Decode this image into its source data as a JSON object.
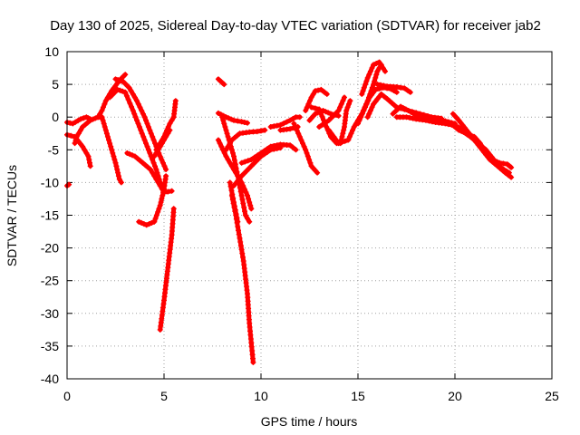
{
  "chart_data": {
    "type": "scatter",
    "title": "Day 130 of 2025, Sidereal Day-to-day VTEC variation (SDTVAR) for receiver jab2",
    "xlabel": "GPS time / hours",
    "ylabel": "SDTVAR / TECUs",
    "xlim": [
      0,
      25
    ],
    "ylim": [
      -40,
      10
    ],
    "xticks": [
      0,
      5,
      10,
      15,
      20,
      25
    ],
    "yticks": [
      10,
      5,
      0,
      -5,
      -10,
      -15,
      -20,
      -25,
      -30,
      -35,
      -40
    ],
    "grid": true,
    "marker": "+",
    "color": "#ff0000",
    "series": [
      {
        "name": "s1",
        "points": [
          [
            0,
            -10.5
          ],
          [
            0.1,
            -10.3
          ]
        ]
      },
      {
        "name": "s2",
        "points": [
          [
            0,
            -0.8
          ],
          [
            0.3,
            -1.0
          ],
          [
            0.7,
            -0.3
          ],
          [
            1.0,
            0.0
          ],
          [
            1.2,
            -0.3
          ]
        ]
      },
      {
        "name": "s3",
        "points": [
          [
            0,
            -2.7
          ],
          [
            0.4,
            -3.0
          ],
          [
            0.8,
            -4.5
          ],
          [
            1.1,
            -6.0
          ],
          [
            1.2,
            -7.5
          ]
        ]
      },
      {
        "name": "s4",
        "points": [
          [
            0.4,
            -4.0
          ],
          [
            0.5,
            -3.0
          ],
          [
            0.8,
            -1.5
          ],
          [
            1.2,
            -0.5
          ],
          [
            1.6,
            0.0
          ],
          [
            1.8,
            -0.1
          ]
        ]
      },
      {
        "name": "s5",
        "points": [
          [
            1.6,
            0.0
          ],
          [
            1.8,
            1.0
          ],
          [
            2.0,
            2.5
          ],
          [
            2.3,
            4.0
          ],
          [
            2.7,
            5.6
          ],
          [
            3.0,
            6.5
          ]
        ]
      },
      {
        "name": "s6",
        "points": [
          [
            1.8,
            0.0
          ],
          [
            2.0,
            -2.0
          ],
          [
            2.2,
            -4.0
          ],
          [
            2.5,
            -7.0
          ],
          [
            2.7,
            -9.5
          ],
          [
            2.8,
            -10.0
          ]
        ]
      },
      {
        "name": "s7",
        "points": [
          [
            2.5,
            5.8
          ],
          [
            2.9,
            5.4
          ],
          [
            3.2,
            4.5
          ],
          [
            3.6,
            2.5
          ],
          [
            4.0,
            0.0
          ],
          [
            4.4,
            -3.0
          ],
          [
            4.8,
            -6.0
          ],
          [
            5.1,
            -8.0
          ]
        ]
      },
      {
        "name": "s8",
        "points": [
          [
            2.2,
            3.0
          ],
          [
            2.6,
            4.2
          ],
          [
            3.0,
            3.8
          ],
          [
            3.4,
            1.0
          ],
          [
            3.8,
            -2.0
          ],
          [
            4.2,
            -5.0
          ],
          [
            4.6,
            -8.0
          ],
          [
            4.9,
            -11.0
          ]
        ]
      },
      {
        "name": "s9",
        "points": [
          [
            3.1,
            -5.5
          ],
          [
            3.5,
            -6.0
          ],
          [
            3.9,
            -7.0
          ],
          [
            4.3,
            -8.0
          ],
          [
            4.7,
            -10.0
          ],
          [
            5.0,
            -11.5
          ],
          [
            5.4,
            -11.3
          ]
        ]
      },
      {
        "name": "s10",
        "points": [
          [
            3.7,
            -16.0
          ],
          [
            4.1,
            -16.5
          ],
          [
            4.5,
            -16.0
          ],
          [
            4.8,
            -13.5
          ],
          [
            5.0,
            -11.0
          ],
          [
            5.1,
            -9.0
          ]
        ]
      },
      {
        "name": "s11",
        "points": [
          [
            4.6,
            -5.0
          ],
          [
            5.0,
            -3.0
          ],
          [
            5.3,
            -1.0
          ],
          [
            5.5,
            0.0
          ],
          [
            5.6,
            2.5
          ]
        ]
      },
      {
        "name": "s12",
        "points": [
          [
            4.5,
            -6.0
          ],
          [
            4.8,
            -4.5
          ],
          [
            5.1,
            -3.0
          ],
          [
            5.3,
            -2.0
          ]
        ]
      },
      {
        "name": "s13",
        "points": [
          [
            4.8,
            -32.5
          ],
          [
            5.0,
            -28.0
          ],
          [
            5.2,
            -23.0
          ],
          [
            5.4,
            -18.0
          ],
          [
            5.5,
            -14.0
          ]
        ]
      },
      {
        "name": "s14",
        "points": [
          [
            7.8,
            5.8
          ],
          [
            8.1,
            5.0
          ]
        ]
      },
      {
        "name": "s15",
        "points": [
          [
            7.8,
            0.6
          ],
          [
            8.2,
            0.0
          ],
          [
            8.6,
            -0.5
          ],
          [
            9.0,
            -0.7
          ],
          [
            9.3,
            -0.9
          ]
        ]
      },
      {
        "name": "s16",
        "points": [
          [
            7.8,
            -3.5
          ],
          [
            8.2,
            -6.0
          ],
          [
            8.6,
            -8.0
          ],
          [
            9.0,
            -10.0
          ],
          [
            9.3,
            -12.0
          ],
          [
            9.5,
            -14.0
          ]
        ]
      },
      {
        "name": "s17",
        "points": [
          [
            8.0,
            0.0
          ],
          [
            8.3,
            -3.0
          ],
          [
            8.6,
            -6.0
          ],
          [
            8.8,
            -9.0
          ],
          [
            9.0,
            -12.0
          ],
          [
            9.2,
            -15.0
          ],
          [
            9.4,
            -16.0
          ]
        ]
      },
      {
        "name": "s18",
        "points": [
          [
            8.5,
            -12.0
          ],
          [
            8.7,
            -15.0
          ],
          [
            8.9,
            -18.5
          ],
          [
            9.1,
            -22.0
          ],
          [
            9.3,
            -27.0
          ],
          [
            9.4,
            -31.5
          ],
          [
            9.6,
            -37.5
          ]
        ]
      },
      {
        "name": "s19",
        "points": [
          [
            8.4,
            -10.0
          ],
          [
            8.6,
            -13.0
          ],
          [
            8.8,
            -16.0
          ]
        ]
      },
      {
        "name": "s20",
        "points": [
          [
            8.2,
            -5.0
          ],
          [
            8.5,
            -3.5
          ],
          [
            8.9,
            -2.5
          ],
          [
            9.4,
            -2.3
          ],
          [
            9.8,
            -2.2
          ],
          [
            10.2,
            -2.0
          ]
        ]
      },
      {
        "name": "s21",
        "points": [
          [
            9.0,
            -7.0
          ],
          [
            9.5,
            -6.5
          ],
          [
            10.0,
            -5.5
          ],
          [
            10.5,
            -4.5
          ],
          [
            11.0,
            -4.2
          ],
          [
            11.5,
            -4.3
          ],
          [
            11.8,
            -5.0
          ]
        ]
      },
      {
        "name": "s22",
        "points": [
          [
            8.6,
            -10.5
          ],
          [
            9.0,
            -9.0
          ],
          [
            9.5,
            -7.5
          ],
          [
            10.0,
            -6.0
          ],
          [
            10.5,
            -5.0
          ],
          [
            11.0,
            -4.7
          ]
        ]
      },
      {
        "name": "s23",
        "points": [
          [
            10.5,
            -1.5
          ],
          [
            11.0,
            -1.2
          ],
          [
            11.5,
            -0.5
          ],
          [
            11.8,
            0.0
          ],
          [
            12.0,
            0.0
          ]
        ]
      },
      {
        "name": "s24",
        "points": [
          [
            11.0,
            -2.0
          ],
          [
            11.5,
            -1.8
          ],
          [
            11.9,
            -1.5
          ]
        ]
      },
      {
        "name": "s25",
        "points": [
          [
            11.7,
            -1.0
          ],
          [
            12.0,
            -3.0
          ],
          [
            12.3,
            -5.0
          ],
          [
            12.6,
            -7.5
          ],
          [
            12.9,
            -8.5
          ]
        ]
      },
      {
        "name": "s26",
        "points": [
          [
            12.3,
            1.0
          ],
          [
            12.6,
            3.0
          ],
          [
            12.8,
            4.0
          ],
          [
            13.1,
            4.2
          ],
          [
            13.4,
            3.5
          ]
        ]
      },
      {
        "name": "s27",
        "points": [
          [
            12.5,
            -0.5
          ],
          [
            12.8,
            0.5
          ],
          [
            13.2,
            1.0
          ],
          [
            13.6,
            0.5
          ],
          [
            14.0,
            0.2
          ]
        ]
      },
      {
        "name": "s28",
        "points": [
          [
            12.6,
            1.5
          ],
          [
            13.0,
            1.2
          ],
          [
            13.3,
            -1.0
          ],
          [
            13.6,
            -3.0
          ],
          [
            13.9,
            -4.0
          ],
          [
            14.1,
            -4.0
          ],
          [
            14.3,
            -1.5
          ],
          [
            14.4,
            1.0
          ],
          [
            14.6,
            2.5
          ]
        ]
      },
      {
        "name": "s29",
        "points": [
          [
            13.0,
            -1.5
          ],
          [
            13.5,
            -0.5
          ],
          [
            14.0,
            1.0
          ],
          [
            14.3,
            3.0
          ]
        ]
      },
      {
        "name": "s30",
        "points": [
          [
            13.5,
            -2.0
          ],
          [
            14.0,
            -4.0
          ],
          [
            14.5,
            -3.5
          ],
          [
            14.8,
            -1.5
          ],
          [
            15.2,
            0.5
          ],
          [
            15.5,
            2.5
          ],
          [
            15.8,
            5.0
          ],
          [
            16.0,
            7.0
          ],
          [
            16.2,
            8.0
          ]
        ]
      },
      {
        "name": "s31",
        "points": [
          [
            15.0,
            -1.0
          ],
          [
            15.3,
            1.0
          ],
          [
            15.6,
            3.0
          ],
          [
            15.9,
            4.2
          ],
          [
            16.3,
            4.5
          ],
          [
            16.7,
            4.3
          ],
          [
            17.0,
            3.8
          ]
        ]
      },
      {
        "name": "s32",
        "points": [
          [
            15.5,
            0.0
          ],
          [
            15.8,
            2.0
          ],
          [
            16.2,
            3.5
          ],
          [
            16.5,
            2.8
          ],
          [
            17.0,
            1.5
          ],
          [
            17.6,
            1.0
          ],
          [
            18.2,
            0.5
          ],
          [
            18.8,
            0.0
          ],
          [
            19.3,
            -0.2
          ]
        ]
      },
      {
        "name": "s33",
        "points": [
          [
            15.2,
            3.5
          ],
          [
            15.5,
            6.0
          ],
          [
            15.8,
            8.0
          ],
          [
            16.1,
            8.4
          ],
          [
            16.4,
            7.0
          ]
        ]
      },
      {
        "name": "s34",
        "points": [
          [
            16.0,
            5.0
          ],
          [
            16.5,
            4.7
          ],
          [
            17.0,
            4.6
          ],
          [
            17.4,
            4.4
          ],
          [
            17.7,
            3.8
          ]
        ]
      },
      {
        "name": "s35",
        "points": [
          [
            16.8,
            0.5
          ],
          [
            17.2,
            1.6
          ],
          [
            17.6,
            1.0
          ],
          [
            18.0,
            0.3
          ],
          [
            18.5,
            0.0
          ],
          [
            19.0,
            -0.3
          ],
          [
            19.5,
            -0.6
          ],
          [
            20.0,
            -1.0
          ]
        ]
      },
      {
        "name": "s36",
        "points": [
          [
            17.0,
            0.0
          ],
          [
            17.5,
            0.0
          ],
          [
            18.0,
            -0.3
          ],
          [
            18.5,
            -0.5
          ],
          [
            19.0,
            -0.8
          ],
          [
            19.5,
            -1.0
          ],
          [
            20.0,
            -1.3
          ],
          [
            20.5,
            -2.0
          ]
        ]
      },
      {
        "name": "s37",
        "points": [
          [
            19.8,
            -1.0
          ],
          [
            20.2,
            -2.0
          ],
          [
            20.6,
            -2.5
          ],
          [
            21.0,
            -3.0
          ],
          [
            21.3,
            -4.0
          ],
          [
            21.6,
            -5.5
          ],
          [
            21.9,
            -6.5
          ],
          [
            22.3,
            -7.0
          ],
          [
            22.7,
            -7.2
          ],
          [
            22.9,
            -7.7
          ]
        ]
      },
      {
        "name": "s38",
        "points": [
          [
            19.9,
            0.5
          ],
          [
            20.2,
            -0.5
          ],
          [
            20.6,
            -2.0
          ],
          [
            21.0,
            -3.5
          ],
          [
            21.4,
            -5.0
          ],
          [
            21.8,
            -6.5
          ],
          [
            22.2,
            -7.5
          ],
          [
            22.6,
            -8.5
          ],
          [
            22.9,
            -9.2
          ]
        ]
      },
      {
        "name": "s39",
        "points": [
          [
            20.3,
            -2.0
          ],
          [
            20.8,
            -3.0
          ],
          [
            21.2,
            -4.0
          ],
          [
            21.6,
            -5.0
          ],
          [
            22.0,
            -6.5
          ],
          [
            22.4,
            -7.8
          ],
          [
            22.8,
            -8.5
          ]
        ]
      }
    ]
  }
}
